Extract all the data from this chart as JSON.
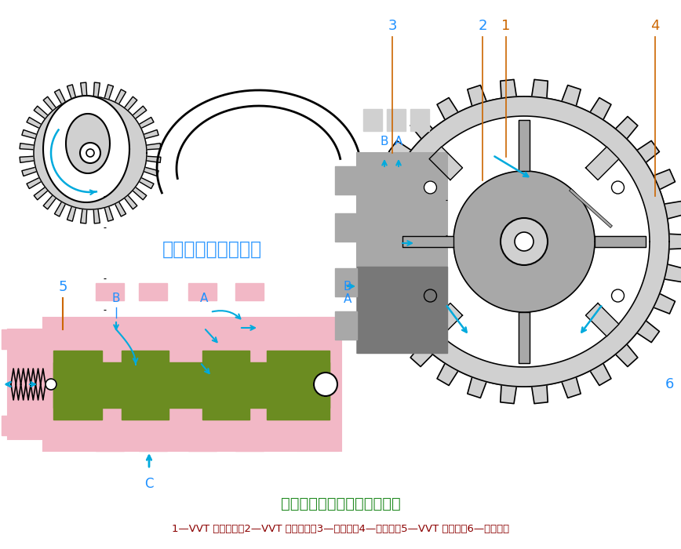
{
  "title": "保持位置控制与提前位置控制",
  "subtitle": "1—VVT 链轮定子；2—VVT 链轮转子；3—凸轮轴；4—锁止销；5—VVT 电磁阀；6—转子叶片",
  "watermark": "汽车维修技术与知识",
  "bg_color": "#ffffff",
  "title_color": "#228B22",
  "subtitle_color": "#8B0000",
  "watermark_color": "#1E90FF",
  "blue": "#1E90FF",
  "orange": "#CC6600",
  "pink": "#F2B8C6",
  "green": "#6B8C21",
  "lgray": "#D0D0D0",
  "mgray": "#A8A8A8",
  "dgray": "#787878",
  "black": "#000000",
  "arrow_blue": "#00AADD"
}
